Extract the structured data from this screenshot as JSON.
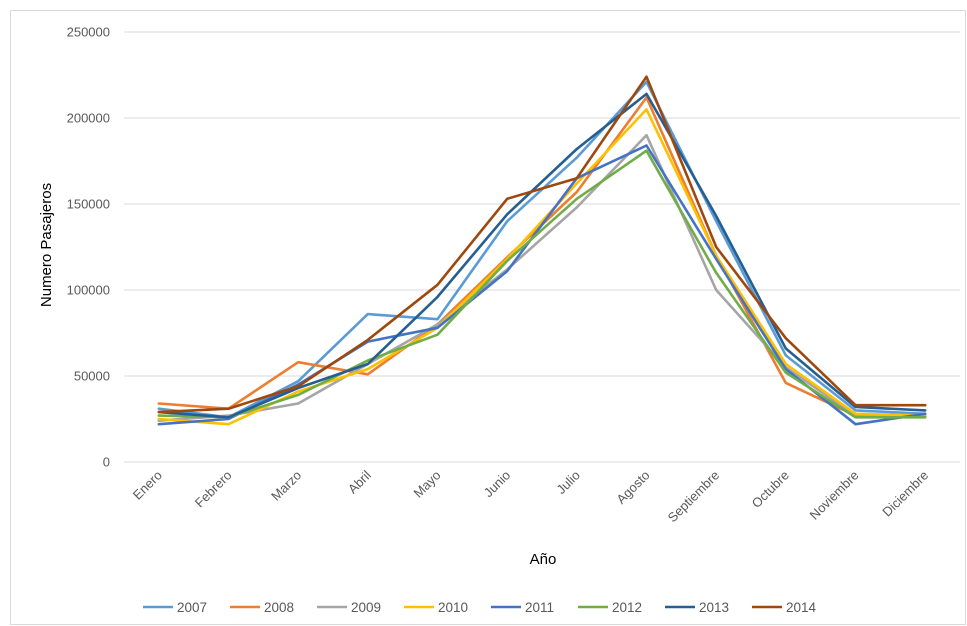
{
  "chart_data": {
    "type": "line",
    "title": "",
    "xlabel": "Año",
    "ylabel": "Numero Pasajeros",
    "ylim": [
      0,
      250000
    ],
    "yticks": [
      0,
      50000,
      100000,
      150000,
      200000,
      250000
    ],
    "ytick_labels": [
      "0",
      "50000",
      "100000",
      "150000",
      "200000",
      "250000"
    ],
    "grid": true,
    "legend": "bottom",
    "categories": [
      "Enero",
      "Febrero",
      "Marzo",
      "Abril",
      "Mayo",
      "Junio",
      "Julio",
      "Agosto",
      "Septiembre",
      "Octubre",
      "Noviembre",
      "Diciembre"
    ],
    "series": [
      {
        "name": "2007",
        "color": "#5b9bd5",
        "values": [
          31000,
          26000,
          47000,
          86000,
          83000,
          140000,
          177000,
          221000,
          140000,
          62000,
          30000,
          28000
        ]
      },
      {
        "name": "2008",
        "color": "#ed7d31",
        "values": [
          34000,
          31000,
          58000,
          51000,
          80000,
          119000,
          157000,
          212000,
          120000,
          46000,
          27000,
          27000
        ]
      },
      {
        "name": "2009",
        "color": "#a5a5a5",
        "values": [
          24000,
          27000,
          34000,
          57000,
          80000,
          112000,
          148000,
          190000,
          100000,
          55000,
          27000,
          27000
        ]
      },
      {
        "name": "2010",
        "color": "#ffc000",
        "values": [
          25000,
          22000,
          41000,
          54000,
          78000,
          118000,
          162000,
          205000,
          120000,
          57000,
          28000,
          27000
        ]
      },
      {
        "name": "2011",
        "color": "#4472c4",
        "values": [
          22000,
          25000,
          45000,
          70000,
          78000,
          111000,
          165000,
          184000,
          118000,
          54000,
          22000,
          28000
        ]
      },
      {
        "name": "2012",
        "color": "#70ad47",
        "values": [
          27000,
          26000,
          39000,
          59000,
          74000,
          117000,
          153000,
          181000,
          110000,
          52000,
          26000,
          26000
        ]
      },
      {
        "name": "2013",
        "color": "#255e91",
        "values": [
          29000,
          26000,
          43000,
          57000,
          96000,
          144000,
          182000,
          214000,
          143000,
          66000,
          32000,
          30000
        ]
      },
      {
        "name": "2014",
        "color": "#9e480e",
        "values": [
          29000,
          31000,
          44000,
          71000,
          103000,
          153000,
          165000,
          224000,
          125000,
          72000,
          33000,
          33000
        ]
      }
    ]
  }
}
